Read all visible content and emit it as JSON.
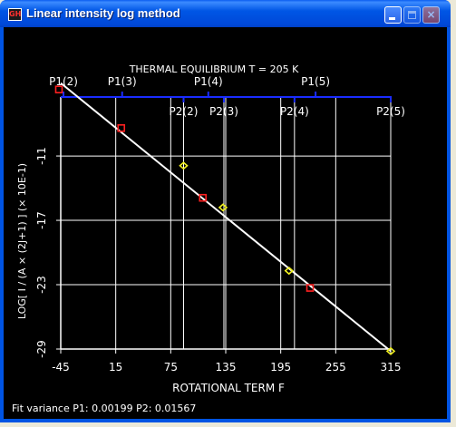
{
  "window": {
    "title": "Linear intensity log method",
    "app_icon_text": "GH",
    "close_glyph": "×"
  },
  "chart_data": {
    "type": "scatter",
    "title": "THERMAL EQUILIBRIUM T = 205 K",
    "xlabel": "ROTATIONAL TERM  F",
    "ylabel": "LOG[ I / (A × (2J+1) ] (× 10E-1)",
    "xlim": [
      -45,
      315
    ],
    "ylim": [
      -29,
      -5.5
    ],
    "x_ticks": [
      -45,
      15,
      75,
      135,
      195,
      255,
      315
    ],
    "y_ticks": [
      -11,
      -17,
      -23,
      -29
    ],
    "x_tick_labels": [
      "-45",
      "15",
      "75",
      "135",
      "195",
      "255",
      "315"
    ],
    "y_tick_labels": [
      "-11",
      "-17",
      "-23",
      "-29"
    ],
    "grid": true,
    "top_axis_labels": [
      {
        "label": "P1(2)",
        "x": -42
      },
      {
        "label": "P1(3)",
        "x": 22
      },
      {
        "label": "P1(4)",
        "x": 116
      },
      {
        "label": "P1(5)",
        "x": 233
      },
      {
        "label": "P2(2)",
        "x": 89
      },
      {
        "label": "P2(3)",
        "x": 133
      },
      {
        "label": "P2(4)",
        "x": 210
      },
      {
        "label": "P2(5)",
        "x": 315
      }
    ],
    "series": [
      {
        "name": "P1",
        "marker": "square",
        "color": "#FF2020",
        "x": [
          -47,
          21,
          110,
          227
        ],
        "y": [
          -4.8,
          -8.4,
          -14.9,
          -23.3
        ]
      },
      {
        "name": "P2",
        "marker": "diamond",
        "color": "#F0F020",
        "x": [
          89,
          132,
          204,
          315
        ],
        "y": [
          -11.9,
          -15.8,
          -21.7,
          -29.2
        ]
      }
    ],
    "fit_line": {
      "x": [
        -45,
        315
      ],
      "y": [
        -4.2,
        -29.2
      ],
      "color": "#FFFFFF"
    },
    "footer": "Fit variance P1: 0.00199 P2: 0.01567"
  }
}
